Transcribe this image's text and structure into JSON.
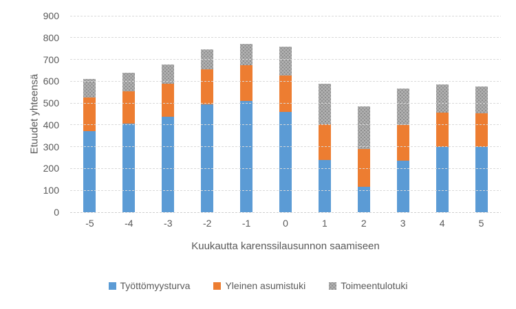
{
  "chart_data": {
    "type": "bar",
    "stacked": true,
    "title": "",
    "xlabel": "Kuukautta karenssilausunnon saamiseen",
    "ylabel": "Etuudet yhteensä",
    "ylim": [
      0,
      900
    ],
    "yticks": [
      900,
      800,
      700,
      600,
      500,
      400,
      300,
      200,
      100,
      0
    ],
    "categories": [
      "-5",
      "-4",
      "-3",
      "-2",
      "-1",
      "0",
      "1",
      "2",
      "3",
      "4",
      "5"
    ],
    "series": [
      {
        "name": "Työttömyysturva",
        "color": "#5B9BD5",
        "pattern": false,
        "values": [
          372,
          405,
          438,
          495,
          511,
          459,
          240,
          118,
          236,
          299,
          299
        ]
      },
      {
        "name": "Yleinen asumistuki",
        "color": "#ED7D31",
        "pattern": false,
        "values": [
          153,
          150,
          152,
          160,
          162,
          167,
          164,
          171,
          164,
          156,
          154
        ]
      },
      {
        "name": "Toimeentulotuki",
        "color": "#A6A6A6",
        "pattern": true,
        "values": [
          86,
          84,
          86,
          92,
          97,
          131,
          184,
          197,
          166,
          131,
          123
        ]
      }
    ],
    "stack_totals": [
      611,
      639,
      676,
      747,
      770,
      757,
      588,
      486,
      566,
      586,
      576
    ],
    "grid": true,
    "legend_position": "bottom",
    "colors": {
      "gridline": "#D9D9D9",
      "text": "#595959",
      "background": "#FFFFFF"
    }
  }
}
